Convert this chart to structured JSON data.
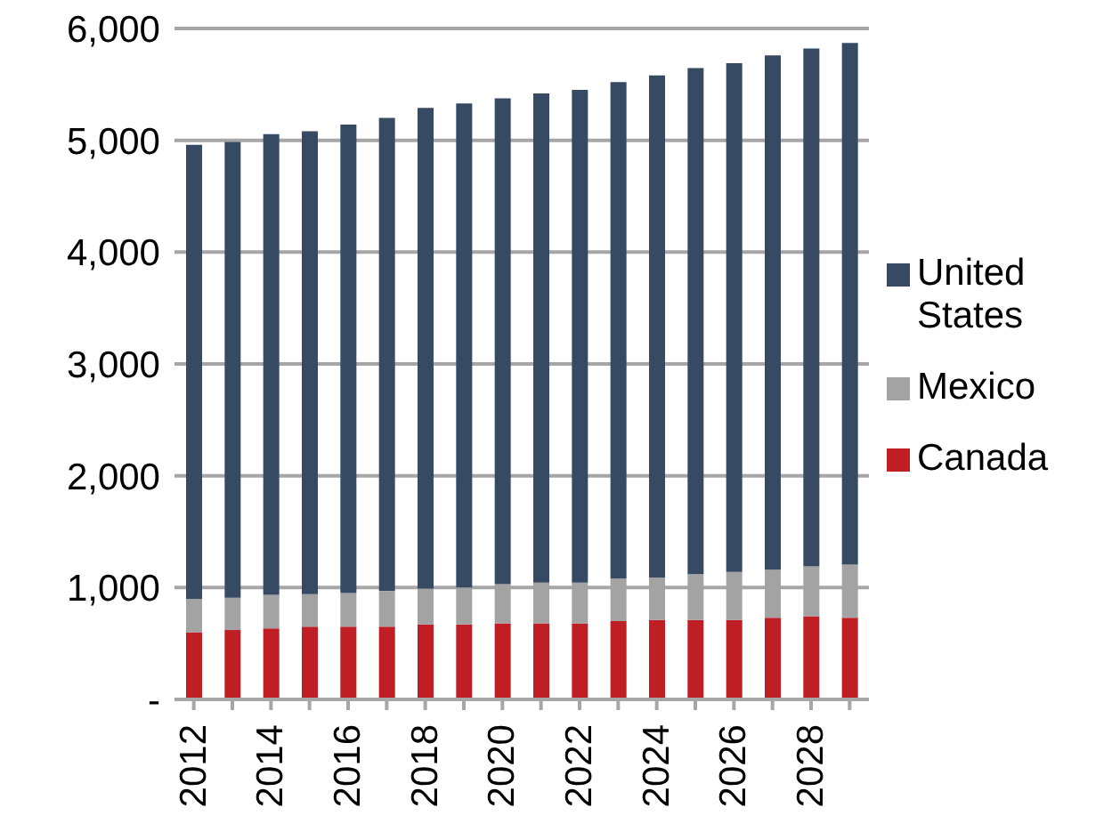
{
  "chart_data": {
    "type": "bar",
    "stacked": true,
    "categories": [
      "2012",
      null,
      "2014",
      null,
      "2016",
      null,
      "2018",
      null,
      "2020",
      null,
      "2022",
      null,
      "2024",
      null,
      "2026",
      null,
      "2028",
      null
    ],
    "series": [
      {
        "name": "Canada",
        "color": "#be1e24",
        "values": [
          600,
          620,
          635,
          650,
          650,
          650,
          670,
          670,
          680,
          680,
          680,
          700,
          710,
          710,
          710,
          730,
          745,
          730
        ]
      },
      {
        "name": "Mexico",
        "color": "#a3a3a3",
        "values": [
          300,
          290,
          300,
          290,
          300,
          320,
          320,
          330,
          350,
          365,
          365,
          380,
          380,
          410,
          430,
          430,
          445,
          475
        ]
      },
      {
        "name": "United States",
        "color": "#364a63",
        "values": [
          4060,
          4075,
          4120,
          4140,
          4190,
          4230,
          4300,
          4330,
          4345,
          4375,
          4405,
          4440,
          4490,
          4525,
          4550,
          4600,
          4630,
          4665
        ]
      }
    ],
    "ylim": [
      0,
      6000
    ],
    "yticks": [
      {
        "value": 0,
        "label": "-"
      },
      {
        "value": 1000,
        "label": "1,000"
      },
      {
        "value": 2000,
        "label": "2,000"
      },
      {
        "value": 3000,
        "label": "3,000"
      },
      {
        "value": 4000,
        "label": "4,000"
      },
      {
        "value": 5000,
        "label": "5,000"
      },
      {
        "value": 6000,
        "label": "6,000"
      }
    ],
    "grid": "y",
    "legend": "right"
  }
}
